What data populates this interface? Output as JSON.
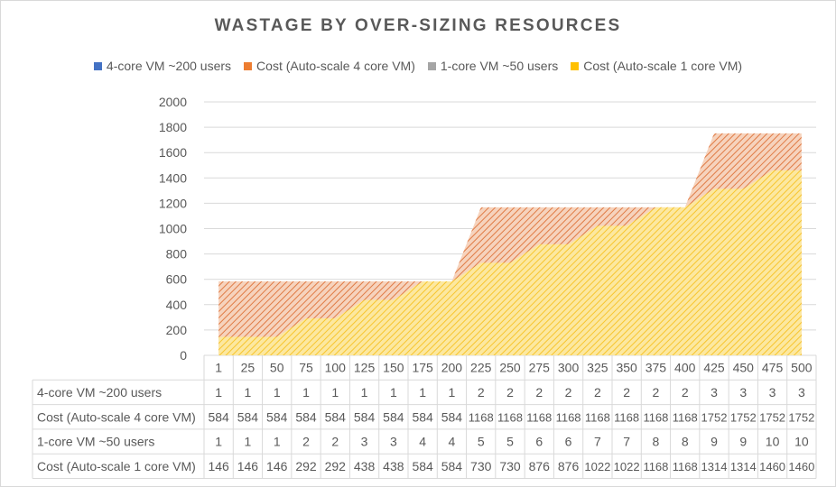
{
  "chart_data": {
    "type": "area",
    "title": "WASTAGE BY OVER-SIZING RESOURCES",
    "categories": [
      "1",
      "25",
      "50",
      "75",
      "100",
      "125",
      "150",
      "175",
      "200",
      "225",
      "250",
      "275",
      "300",
      "325",
      "350",
      "375",
      "400",
      "425",
      "450",
      "475",
      "500"
    ],
    "series": [
      {
        "name": "4-core VM ~200 users",
        "values": [
          1,
          1,
          1,
          1,
          1,
          1,
          1,
          1,
          1,
          2,
          2,
          2,
          2,
          2,
          2,
          2,
          2,
          3,
          3,
          3,
          3
        ],
        "color": "#4472c4",
        "plotted": false
      },
      {
        "name": "Cost (Auto-scale 4 core VM)",
        "values": [
          584,
          584,
          584,
          584,
          584,
          584,
          584,
          584,
          584,
          1168,
          1168,
          1168,
          1168,
          1168,
          1168,
          1168,
          1168,
          1752,
          1752,
          1752,
          1752
        ],
        "color": "#ed7d31",
        "plotted": true
      },
      {
        "name": "1-core VM ~50 users",
        "values": [
          1,
          1,
          1,
          2,
          2,
          3,
          3,
          4,
          4,
          5,
          5,
          6,
          6,
          7,
          7,
          8,
          8,
          9,
          9,
          10,
          10
        ],
        "color": "#a5a5a5",
        "plotted": false
      },
      {
        "name": "Cost (Auto-scale 1 core VM)",
        "values": [
          146,
          146,
          146,
          292,
          292,
          438,
          438,
          584,
          584,
          730,
          730,
          876,
          876,
          1022,
          1022,
          1168,
          1168,
          1314,
          1314,
          1460,
          1460
        ],
        "color": "#ffc000",
        "plotted": true
      }
    ],
    "ylim": [
      0,
      2000
    ],
    "yticks": [
      0,
      200,
      400,
      600,
      800,
      1000,
      1200,
      1400,
      1600,
      1800,
      2000
    ],
    "grid": true,
    "legend_position": "top",
    "data_table": true
  }
}
